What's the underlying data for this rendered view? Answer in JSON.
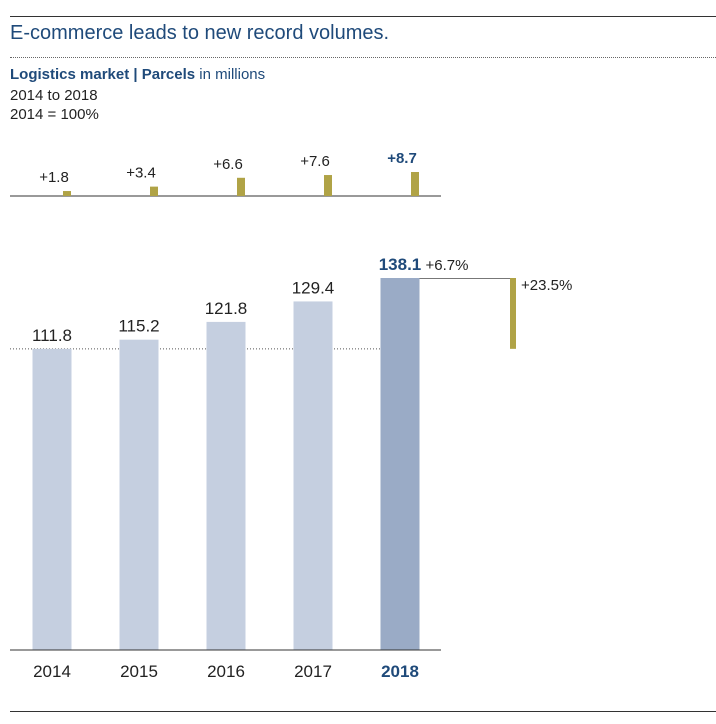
{
  "headline": "E-commerce leads to new record volumes.",
  "subtitle": {
    "bold": "Logistics market | Parcels",
    "rest": " in millions"
  },
  "period": "2014 to 2018",
  "base": "2014 = 100%",
  "colors": {
    "bar": "#c5cfe0",
    "bar_highlight": "#9aabc6",
    "increment": "#b0a346",
    "accent_text": "#1f4a7a",
    "text": "#222222"
  },
  "chart_data": {
    "type": "bar",
    "title": "Logistics market | Parcels in millions",
    "categories": [
      "2014",
      "2015",
      "2016",
      "2017",
      "2018"
    ],
    "values": [
      111.8,
      115.2,
      121.8,
      129.4,
      138.1
    ],
    "value_labels": [
      "111.8",
      "115.2",
      "121.8",
      "129.4",
      "138.1"
    ],
    "highlight_index": 4,
    "increments": [
      1.8,
      3.4,
      6.6,
      7.6,
      8.7
    ],
    "increment_labels": [
      "+1.8",
      "+3.4",
      "+6.6",
      "+7.6",
      "+8.7"
    ],
    "yoy_change_label": "+6.7%",
    "total_change_label": "+23.5%",
    "baseline_value": 111.8,
    "ylim": [
      0,
      138.1
    ]
  }
}
